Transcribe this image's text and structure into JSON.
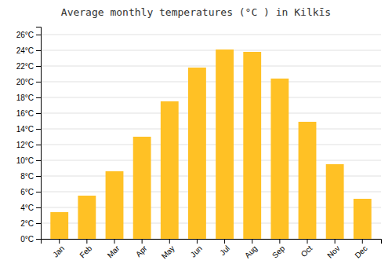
{
  "chart_data": {
    "type": "bar",
    "title": "Average monthly temperatures (°C ) in Kilkīs",
    "categories": [
      "Jan",
      "Feb",
      "Mar",
      "Apr",
      "May",
      "Jun",
      "Jul",
      "Aug",
      "Sep",
      "Oct",
      "Nov",
      "Dec"
    ],
    "values": [
      3.4,
      5.5,
      8.6,
      13.0,
      17.5,
      21.8,
      24.1,
      23.8,
      20.4,
      14.9,
      9.5,
      5.1
    ],
    "color": "#FFC125",
    "ylim": [
      0,
      27
    ],
    "yticks": [
      {
        "value": 0,
        "label": "0°C"
      },
      {
        "value": 2,
        "label": "2°C"
      },
      {
        "value": 4,
        "label": "4°C"
      },
      {
        "value": 6,
        "label": "6°C"
      },
      {
        "value": 8,
        "label": "8°C"
      },
      {
        "value": 10,
        "label": "10°C"
      },
      {
        "value": 12,
        "label": "12°C"
      },
      {
        "value": 14,
        "label": "14°C"
      },
      {
        "value": 16,
        "label": "16°C"
      },
      {
        "value": 18,
        "label": "18°C"
      },
      {
        "value": 20,
        "label": "20°C"
      },
      {
        "value": 22,
        "label": "22°C"
      },
      {
        "value": 24,
        "label": "24°C"
      },
      {
        "value": 26,
        "label": "26°C"
      }
    ],
    "grid": true
  }
}
